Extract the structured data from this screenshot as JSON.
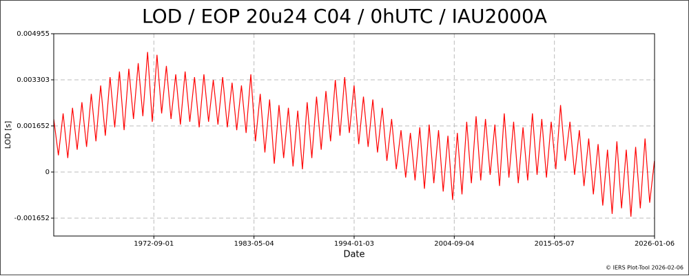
{
  "chart_data": {
    "type": "line",
    "title": "LOD / EOP 20u24 C04 / 0hUTC / IAU2000A",
    "x_label": "Date",
    "y_label": "LOD [s]",
    "footer": "© IERS Plot-Tool 2026-02-06",
    "xlim": [
      "1962-01-01",
      "2026-01-06"
    ],
    "xticks": [
      "1972-09-01",
      "1983-05-04",
      "1994-01-03",
      "2004-09-04",
      "2015-05-07",
      "2026-01-06"
    ],
    "ylim": [
      -0.002293,
      0.004955
    ],
    "yticks": [
      -0.001652,
      0,
      0.001652,
      0.003303,
      0.004955
    ],
    "grid": true,
    "x": [
      "1962-01-01",
      "1962-07-01",
      "1963-01-01",
      "1963-07-01",
      "1964-01-01",
      "1964-07-01",
      "1965-01-01",
      "1965-07-01",
      "1966-01-01",
      "1966-07-01",
      "1967-01-01",
      "1967-07-01",
      "1968-01-01",
      "1968-07-01",
      "1969-01-01",
      "1969-07-01",
      "1970-01-01",
      "1970-07-01",
      "1971-01-01",
      "1971-07-01",
      "1972-01-01",
      "1972-07-01",
      "1973-01-01",
      "1973-07-01",
      "1974-01-01",
      "1974-07-01",
      "1975-01-01",
      "1975-07-01",
      "1976-01-01",
      "1976-07-01",
      "1977-01-01",
      "1977-07-01",
      "1978-01-01",
      "1978-07-01",
      "1979-01-01",
      "1979-07-01",
      "1980-01-01",
      "1980-07-01",
      "1981-01-01",
      "1981-07-01",
      "1982-01-01",
      "1982-07-01",
      "1983-01-01",
      "1983-07-01",
      "1984-01-01",
      "1984-07-01",
      "1985-01-01",
      "1985-07-01",
      "1986-01-01",
      "1986-07-01",
      "1987-01-01",
      "1987-07-01",
      "1988-01-01",
      "1988-07-01",
      "1989-01-01",
      "1989-07-01",
      "1990-01-01",
      "1990-07-01",
      "1991-01-01",
      "1991-07-01",
      "1992-01-01",
      "1992-07-01",
      "1993-01-01",
      "1993-07-01",
      "1994-01-01",
      "1994-07-01",
      "1995-01-01",
      "1995-07-01",
      "1996-01-01",
      "1996-07-01",
      "1997-01-01",
      "1997-07-01",
      "1998-01-01",
      "1998-07-01",
      "1999-01-01",
      "1999-07-01",
      "2000-01-01",
      "2000-07-01",
      "2001-01-01",
      "2001-07-01",
      "2002-01-01",
      "2002-07-01",
      "2003-01-01",
      "2003-07-01",
      "2004-01-01",
      "2004-07-01",
      "2005-01-01",
      "2005-07-01",
      "2006-01-01",
      "2006-07-01",
      "2007-01-01",
      "2007-07-01",
      "2008-01-01",
      "2008-07-01",
      "2009-01-01",
      "2009-07-01",
      "2010-01-01",
      "2010-07-01",
      "2011-01-01",
      "2011-07-01",
      "2012-01-01",
      "2012-07-01",
      "2013-01-01",
      "2013-07-01",
      "2014-01-01",
      "2014-07-01",
      "2015-01-01",
      "2015-07-01",
      "2016-01-01",
      "2016-07-01",
      "2017-01-01",
      "2017-07-01",
      "2018-01-01",
      "2018-07-01",
      "2019-01-01",
      "2019-07-01",
      "2020-01-01",
      "2020-07-01",
      "2021-01-01",
      "2021-07-01",
      "2022-01-01",
      "2022-07-01",
      "2023-01-01",
      "2023-07-01",
      "2024-01-01",
      "2024-07-01",
      "2025-01-01",
      "2025-07-01",
      "2026-01-01"
    ],
    "series": [
      {
        "color": "#ff0000",
        "values": [
          0.0019,
          0.0006,
          0.0021,
          0.0005,
          0.0023,
          0.0008,
          0.0025,
          0.0009,
          0.0028,
          0.0011,
          0.0031,
          0.0013,
          0.0034,
          0.0016,
          0.0036,
          0.0015,
          0.0037,
          0.0019,
          0.0039,
          0.002,
          0.0043,
          0.0018,
          0.0042,
          0.0021,
          0.0038,
          0.0019,
          0.0035,
          0.0017,
          0.0036,
          0.0018,
          0.0034,
          0.0016,
          0.0035,
          0.0018,
          0.0033,
          0.0017,
          0.0034,
          0.0016,
          0.0032,
          0.0015,
          0.0031,
          0.0014,
          0.0035,
          0.0011,
          0.0028,
          0.0007,
          0.0026,
          0.0003,
          0.0024,
          0.0005,
          0.0023,
          0.0002,
          0.0022,
          0.0001,
          0.0025,
          0.0005,
          0.0027,
          0.0008,
          0.0029,
          0.0011,
          0.0033,
          0.0013,
          0.0034,
          0.0014,
          0.0031,
          0.001,
          0.0027,
          0.0009,
          0.0026,
          0.0007,
          0.0023,
          0.0004,
          0.0019,
          0.0001,
          0.0015,
          -0.0002,
          0.0014,
          -0.0003,
          0.0016,
          -0.0006,
          0.0017,
          -0.0004,
          0.0015,
          -0.0007,
          0.0013,
          -0.001,
          0.0014,
          -0.0008,
          0.0018,
          -0.0004,
          0.002,
          -0.0003,
          0.0019,
          -0.0001,
          0.0017,
          -0.0005,
          0.0021,
          -0.0002,
          0.0018,
          -0.0004,
          0.0016,
          -0.0003,
          0.0021,
          -0.0001,
          0.0019,
          -0.0002,
          0.0018,
          0.0001,
          0.0024,
          0.0004,
          0.0018,
          -0.0001,
          0.0015,
          -0.0005,
          0.0012,
          -0.0008,
          0.001,
          -0.0012,
          0.0008,
          -0.0015,
          0.0011,
          -0.0013,
          0.0008,
          -0.0016,
          0.0009,
          -0.0013,
          0.0012,
          -0.0011,
          0.0004
        ]
      }
    ]
  }
}
